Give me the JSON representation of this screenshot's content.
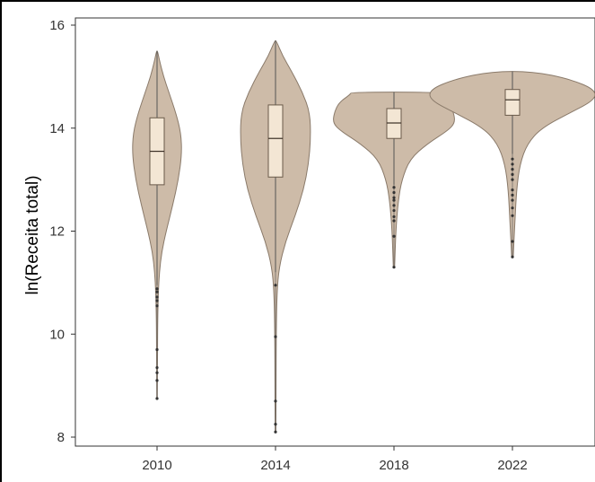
{
  "chart_data": {
    "type": "violin",
    "title": "",
    "xlabel": "",
    "ylabel": "ln(Receita total)",
    "ylim": [
      7.85,
      16.2
    ],
    "yticks": [
      8,
      10,
      12,
      14,
      16
    ],
    "grid": false,
    "legend": "none",
    "colors": {
      "violin_fill": "#cdbba8",
      "violin_stroke": "#8a7a6a",
      "box_fill": "#f3e6d4",
      "box_stroke": "#6a5a4a",
      "whisker": "#555555",
      "outlier": "#333333"
    },
    "categories": [
      "2010",
      "2014",
      "2018",
      "2022"
    ],
    "groups": [
      {
        "category": "2010",
        "min": 8.75,
        "q1": 12.9,
        "median": 13.55,
        "q3": 14.2,
        "max": 15.5,
        "whisker_low": 10.95,
        "whisker_high": 15.5,
        "outliers": [
          8.75,
          9.1,
          9.25,
          9.35,
          9.7,
          10.55,
          10.65,
          10.72,
          10.82,
          10.88
        ],
        "density": [
          [
            8.75,
            0.01
          ],
          [
            9.5,
            0.015
          ],
          [
            10.3,
            0.025
          ],
          [
            10.8,
            0.05
          ],
          [
            11.2,
            0.09
          ],
          [
            11.6,
            0.18
          ],
          [
            12.0,
            0.35
          ],
          [
            12.5,
            0.6
          ],
          [
            13.0,
            0.82
          ],
          [
            13.5,
            0.95
          ],
          [
            13.9,
            0.92
          ],
          [
            14.3,
            0.72
          ],
          [
            14.7,
            0.45
          ],
          [
            15.0,
            0.25
          ],
          [
            15.3,
            0.1
          ],
          [
            15.5,
            0.02
          ]
        ]
      },
      {
        "category": "2014",
        "min": 8.1,
        "q1": 13.05,
        "median": 13.8,
        "q3": 14.45,
        "max": 15.7,
        "whisker_low": 11.2,
        "whisker_high": 15.7,
        "outliers": [
          8.1,
          8.25,
          8.7,
          9.95,
          10.95
        ],
        "density": [
          [
            8.1,
            0.01
          ],
          [
            9.0,
            0.015
          ],
          [
            10.0,
            0.02
          ],
          [
            10.8,
            0.04
          ],
          [
            11.3,
            0.1
          ],
          [
            11.8,
            0.28
          ],
          [
            12.3,
            0.55
          ],
          [
            12.8,
            0.78
          ],
          [
            13.3,
            0.92
          ],
          [
            13.8,
            0.98
          ],
          [
            14.3,
            0.96
          ],
          [
            14.7,
            0.75
          ],
          [
            15.1,
            0.45
          ],
          [
            15.4,
            0.2
          ],
          [
            15.7,
            0.02
          ]
        ]
      },
      {
        "category": "2018",
        "min": 11.3,
        "q1": 13.8,
        "median": 14.1,
        "q3": 14.38,
        "max": 14.7,
        "whisker_low": 12.9,
        "whisker_high": 14.7,
        "outliers": [
          11.3,
          11.9,
          12.2,
          12.28,
          12.4,
          12.5,
          12.6,
          12.65,
          12.75,
          12.85
        ],
        "density": [
          [
            11.3,
            0.01
          ],
          [
            12.0,
            0.03
          ],
          [
            12.6,
            0.07
          ],
          [
            13.0,
            0.13
          ],
          [
            13.4,
            0.26
          ],
          [
            13.7,
            0.55
          ],
          [
            13.95,
            0.88
          ],
          [
            14.1,
            1.0
          ],
          [
            14.3,
            0.98
          ],
          [
            14.5,
            0.9
          ],
          [
            14.65,
            0.72
          ],
          [
            14.7,
            0.7
          ]
        ]
      },
      {
        "category": "2022",
        "min": 11.5,
        "q1": 14.25,
        "median": 14.55,
        "q3": 14.75,
        "max": 15.1,
        "whisker_low": 13.5,
        "whisker_high": 15.1,
        "outliers": [
          11.5,
          11.8,
          12.3,
          12.45,
          12.6,
          12.7,
          12.8,
          13.0,
          13.1,
          13.2,
          13.3,
          13.4
        ],
        "density": [
          [
            11.5,
            0.01
          ],
          [
            12.2,
            0.03
          ],
          [
            12.8,
            0.05
          ],
          [
            13.3,
            0.09
          ],
          [
            13.7,
            0.18
          ],
          [
            14.0,
            0.35
          ],
          [
            14.3,
            0.7
          ],
          [
            14.55,
            1.0
          ],
          [
            14.75,
            1.0
          ],
          [
            14.95,
            0.7
          ],
          [
            15.1,
            0.25
          ]
        ]
      }
    ]
  }
}
